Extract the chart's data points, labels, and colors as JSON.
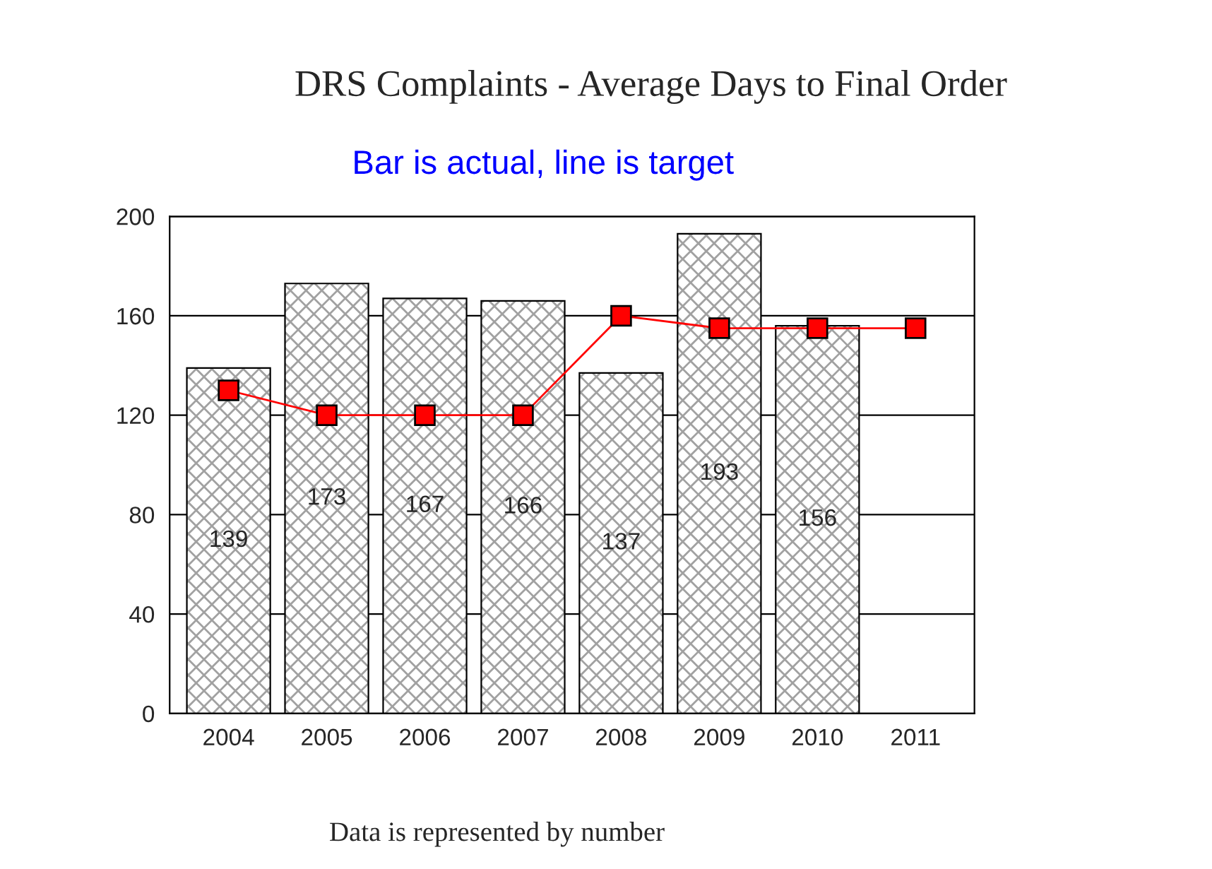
{
  "chart_data": {
    "type": "bar",
    "title": "DRS Complaints - Average Days to Final Order",
    "subtitle": "Bar is actual, line is target",
    "annotations": [
      "Data is represented by number"
    ],
    "categories": [
      "2004",
      "2005",
      "2006",
      "2007",
      "2008",
      "2009",
      "2010",
      "2011"
    ],
    "series": [
      {
        "values": [
          139,
          173,
          167,
          166,
          137,
          193,
          156,
          null
        ],
        "value_labels": [
          "139",
          "173",
          "167",
          "166",
          "137",
          "193",
          "156",
          null
        ]
      },
      {
        "type": "line",
        "color": "#ff0000",
        "marker": "square",
        "line_style": "solid",
        "values": [
          130,
          120,
          120,
          120,
          160,
          155,
          155,
          155
        ]
      }
    ],
    "ylim": [
      0,
      200
    ],
    "yticks": [
      0,
      40,
      80,
      120,
      160,
      200
    ],
    "grid": "y",
    "legend": false
  }
}
